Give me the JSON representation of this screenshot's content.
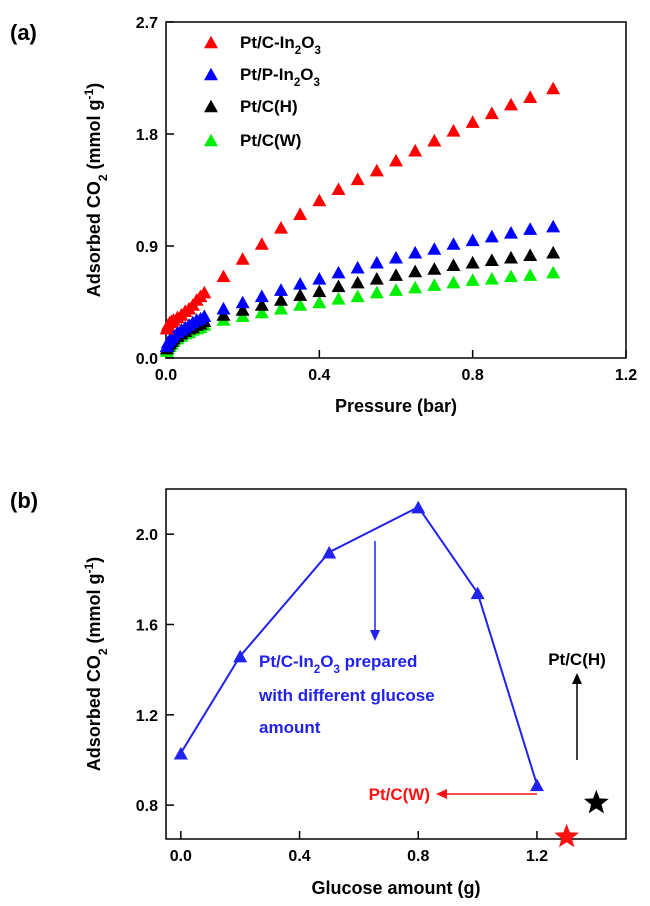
{
  "chart_data": [
    {
      "panel_label": "(a)",
      "type": "scatter",
      "xlabel": "Pressure (bar)",
      "ylabel": {
        "pre": "Adsorbed CO",
        "sub": "2",
        "mid": " (mmol g",
        "sup": "-1",
        "post": ")"
      },
      "xlim": [
        0.0,
        1.2
      ],
      "ylim": [
        0.0,
        2.7
      ],
      "xticks": [
        "0.0",
        "0.4",
        "0.8",
        "1.2"
      ],
      "yticks": [
        "0.0",
        "0.9",
        "1.8",
        "2.7"
      ],
      "legend_position": "top-left",
      "marker": "triangle",
      "series": [
        {
          "name": "Pt/C-In2O3",
          "legend": [
            {
              "t": "Pt/C-In"
            },
            {
              "t": "2",
              "sub": true
            },
            {
              "t": "O"
            },
            {
              "t": "3",
              "sub": true
            }
          ],
          "color": "#ff0000",
          "points": [
            [
              0.002,
              0.24
            ],
            [
              0.005,
              0.27
            ],
            [
              0.01,
              0.29
            ],
            [
              0.015,
              0.3
            ],
            [
              0.02,
              0.31
            ],
            [
              0.03,
              0.33
            ],
            [
              0.04,
              0.35
            ],
            [
              0.05,
              0.38
            ],
            [
              0.06,
              0.4
            ],
            [
              0.07,
              0.43
            ],
            [
              0.08,
              0.47
            ],
            [
              0.09,
              0.5
            ],
            [
              0.1,
              0.53
            ],
            [
              0.15,
              0.66
            ],
            [
              0.2,
              0.8
            ],
            [
              0.25,
              0.92
            ],
            [
              0.3,
              1.05
            ],
            [
              0.35,
              1.16
            ],
            [
              0.4,
              1.27
            ],
            [
              0.45,
              1.36
            ],
            [
              0.5,
              1.44
            ],
            [
              0.55,
              1.51
            ],
            [
              0.6,
              1.59
            ],
            [
              0.65,
              1.67
            ],
            [
              0.7,
              1.75
            ],
            [
              0.75,
              1.83
            ],
            [
              0.8,
              1.9
            ],
            [
              0.85,
              1.97
            ],
            [
              0.9,
              2.04
            ],
            [
              0.95,
              2.1
            ],
            [
              1.01,
              2.17
            ]
          ]
        },
        {
          "name": "Pt/P-In2O3",
          "legend": [
            {
              "t": "Pt/P-In"
            },
            {
              "t": "2",
              "sub": true
            },
            {
              "t": "O"
            },
            {
              "t": "3",
              "sub": true
            }
          ],
          "color": "#0000ff",
          "points": [
            [
              0.002,
              0.1
            ],
            [
              0.005,
              0.13
            ],
            [
              0.01,
              0.15
            ],
            [
              0.015,
              0.17
            ],
            [
              0.02,
              0.19
            ],
            [
              0.03,
              0.21
            ],
            [
              0.04,
              0.23
            ],
            [
              0.05,
              0.25
            ],
            [
              0.06,
              0.27
            ],
            [
              0.07,
              0.29
            ],
            [
              0.08,
              0.31
            ],
            [
              0.09,
              0.32
            ],
            [
              0.1,
              0.34
            ],
            [
              0.15,
              0.4
            ],
            [
              0.2,
              0.45
            ],
            [
              0.25,
              0.5
            ],
            [
              0.3,
              0.55
            ],
            [
              0.35,
              0.6
            ],
            [
              0.4,
              0.64
            ],
            [
              0.45,
              0.69
            ],
            [
              0.5,
              0.73
            ],
            [
              0.55,
              0.77
            ],
            [
              0.6,
              0.81
            ],
            [
              0.65,
              0.85
            ],
            [
              0.7,
              0.88
            ],
            [
              0.75,
              0.92
            ],
            [
              0.8,
              0.95
            ],
            [
              0.85,
              0.98
            ],
            [
              0.9,
              1.01
            ],
            [
              0.95,
              1.04
            ],
            [
              1.01,
              1.06
            ]
          ]
        },
        {
          "name": "Pt/C(H)",
          "legend": [
            {
              "t": "Pt/C(H)"
            }
          ],
          "color": "#000000",
          "points": [
            [
              0.002,
              0.08
            ],
            [
              0.005,
              0.1
            ],
            [
              0.01,
              0.12
            ],
            [
              0.015,
              0.14
            ],
            [
              0.02,
              0.16
            ],
            [
              0.03,
              0.18
            ],
            [
              0.04,
              0.2
            ],
            [
              0.05,
              0.22
            ],
            [
              0.06,
              0.24
            ],
            [
              0.07,
              0.25
            ],
            [
              0.08,
              0.27
            ],
            [
              0.09,
              0.28
            ],
            [
              0.1,
              0.3
            ],
            [
              0.15,
              0.35
            ],
            [
              0.2,
              0.39
            ],
            [
              0.25,
              0.43
            ],
            [
              0.3,
              0.47
            ],
            [
              0.35,
              0.51
            ],
            [
              0.4,
              0.54
            ],
            [
              0.45,
              0.58
            ],
            [
              0.5,
              0.61
            ],
            [
              0.55,
              0.64
            ],
            [
              0.6,
              0.67
            ],
            [
              0.65,
              0.7
            ],
            [
              0.7,
              0.72
            ],
            [
              0.75,
              0.75
            ],
            [
              0.8,
              0.77
            ],
            [
              0.85,
              0.79
            ],
            [
              0.9,
              0.81
            ],
            [
              0.95,
              0.83
            ],
            [
              1.01,
              0.85
            ]
          ]
        },
        {
          "name": "Pt/C(W)",
          "legend": [
            {
              "t": "Pt/C(W)"
            }
          ],
          "color": "#00ee00",
          "points": [
            [
              0.002,
              0.06
            ],
            [
              0.005,
              0.08
            ],
            [
              0.01,
              0.1
            ],
            [
              0.015,
              0.12
            ],
            [
              0.02,
              0.14
            ],
            [
              0.03,
              0.16
            ],
            [
              0.04,
              0.18
            ],
            [
              0.05,
              0.2
            ],
            [
              0.06,
              0.21
            ],
            [
              0.07,
              0.23
            ],
            [
              0.08,
              0.24
            ],
            [
              0.09,
              0.25
            ],
            [
              0.1,
              0.27
            ],
            [
              0.15,
              0.31
            ],
            [
              0.2,
              0.34
            ],
            [
              0.25,
              0.37
            ],
            [
              0.3,
              0.4
            ],
            [
              0.35,
              0.43
            ],
            [
              0.4,
              0.45
            ],
            [
              0.45,
              0.48
            ],
            [
              0.5,
              0.5
            ],
            [
              0.55,
              0.53
            ],
            [
              0.6,
              0.55
            ],
            [
              0.65,
              0.57
            ],
            [
              0.7,
              0.59
            ],
            [
              0.75,
              0.61
            ],
            [
              0.8,
              0.63
            ],
            [
              0.85,
              0.64
            ],
            [
              0.9,
              0.66
            ],
            [
              0.95,
              0.67
            ],
            [
              1.01,
              0.69
            ]
          ]
        }
      ]
    },
    {
      "panel_label": "(b)",
      "type": "line",
      "xlabel": "Glucose amount (g)",
      "ylabel": {
        "pre": "Adsorbed CO",
        "sub": "2",
        "mid": " (mmol g",
        "sup": "-1",
        "post": ")"
      },
      "xlim": [
        -0.05,
        1.5
      ],
      "ylim": [
        0.65,
        2.2
      ],
      "xticks": [
        "0.0",
        "0.4",
        "0.8",
        "1.2"
      ],
      "yticks": [
        "0.8",
        "1.2",
        "1.6",
        "2.0"
      ],
      "series": [
        {
          "name": "Pt/C-In2O3",
          "color": "#2222ee",
          "marker": "triangle",
          "x": [
            0.0,
            0.2,
            0.5,
            0.8,
            1.0,
            1.2
          ],
          "y": [
            1.03,
            1.46,
            1.92,
            2.12,
            1.74,
            0.89
          ]
        }
      ],
      "stars": [
        {
          "name": "Pt/C(H)",
          "color": "#000000",
          "x": 1.4,
          "y": 0.81
        },
        {
          "name": "Pt/C(W)",
          "color": "#ff1111",
          "x": 1.3,
          "y": 0.66
        }
      ],
      "annotations": {
        "blue_text": [
          [
            {
              "t": "Pt/C-In"
            },
            {
              "t": "2",
              "sub": true
            },
            {
              "t": "O"
            },
            {
              "t": "3",
              "sub": true
            },
            {
              "t": " prepared"
            }
          ],
          [
            {
              "t": "with different glucose"
            }
          ],
          [
            {
              "t": "amount"
            }
          ]
        ],
        "blue_color": "#2222ee",
        "black_label": "Pt/C(H)",
        "red_label": "Pt/C(W)",
        "red_color": "#ff1111"
      }
    }
  ]
}
